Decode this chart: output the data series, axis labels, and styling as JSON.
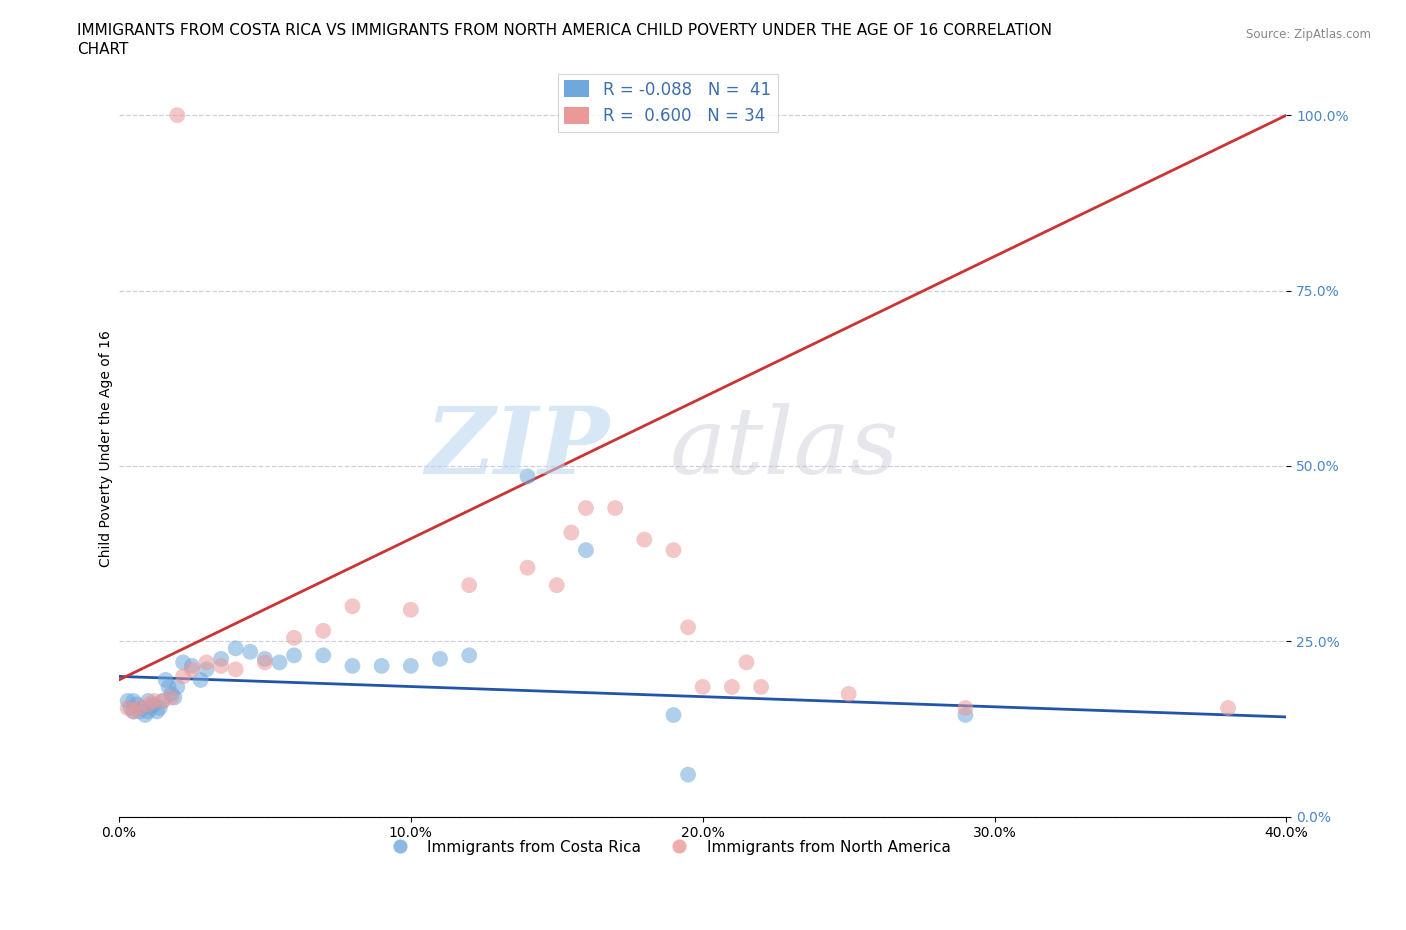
{
  "title_line1": "IMMIGRANTS FROM COSTA RICA VS IMMIGRANTS FROM NORTH AMERICA CHILD POVERTY UNDER THE AGE OF 16 CORRELATION",
  "title_line2": "CHART",
  "source": "Source: ZipAtlas.com",
  "ylabel": "Child Poverty Under the Age of 16",
  "xmin": 0.0,
  "xmax": 0.4,
  "ymin": 0.0,
  "ymax": 1.05,
  "yticks": [
    0.0,
    0.25,
    0.5,
    0.75,
    1.0
  ],
  "ytick_labels": [
    "0.0%",
    "25.0%",
    "50.0%",
    "75.0%",
    "100.0%"
  ],
  "xticks": [
    0.0,
    0.1,
    0.2,
    0.3,
    0.4
  ],
  "xtick_labels": [
    "0.0%",
    "10.0%",
    "20.0%",
    "30.0%",
    "40.0%"
  ],
  "blue_color": "#6fa8dc",
  "pink_color": "#ea9999",
  "blue_line_color": "#2255aa",
  "pink_line_color": "#cc3333",
  "legend_blue_R": "-0.088",
  "legend_blue_N": "41",
  "legend_pink_R": "0.600",
  "legend_pink_N": "34",
  "legend_label_blue": "Immigrants from Costa Rica",
  "legend_label_pink": "Immigrants from North America",
  "blue_x": [
    0.003,
    0.004,
    0.005,
    0.005,
    0.006,
    0.007,
    0.008,
    0.009,
    0.01,
    0.01,
    0.011,
    0.012,
    0.013,
    0.014,
    0.015,
    0.016,
    0.017,
    0.018,
    0.019,
    0.02,
    0.022,
    0.025,
    0.028,
    0.03,
    0.035,
    0.04,
    0.045,
    0.05,
    0.055,
    0.06,
    0.07,
    0.08,
    0.09,
    0.1,
    0.11,
    0.12,
    0.14,
    0.16,
    0.19,
    0.29,
    0.195
  ],
  "blue_y": [
    0.165,
    0.155,
    0.15,
    0.165,
    0.16,
    0.15,
    0.155,
    0.145,
    0.15,
    0.165,
    0.155,
    0.16,
    0.15,
    0.155,
    0.165,
    0.195,
    0.185,
    0.175,
    0.17,
    0.185,
    0.22,
    0.215,
    0.195,
    0.21,
    0.225,
    0.24,
    0.235,
    0.225,
    0.22,
    0.23,
    0.23,
    0.215,
    0.215,
    0.215,
    0.225,
    0.23,
    0.485,
    0.38,
    0.145,
    0.145,
    0.06
  ],
  "pink_x": [
    0.003,
    0.005,
    0.007,
    0.01,
    0.012,
    0.015,
    0.018,
    0.022,
    0.025,
    0.03,
    0.035,
    0.04,
    0.05,
    0.06,
    0.07,
    0.08,
    0.1,
    0.12,
    0.14,
    0.15,
    0.155,
    0.16,
    0.17,
    0.18,
    0.19,
    0.195,
    0.2,
    0.21,
    0.215,
    0.22,
    0.25,
    0.29,
    0.38,
    0.02
  ],
  "pink_y": [
    0.155,
    0.15,
    0.155,
    0.16,
    0.165,
    0.165,
    0.17,
    0.2,
    0.21,
    0.22,
    0.215,
    0.21,
    0.22,
    0.255,
    0.265,
    0.3,
    0.295,
    0.33,
    0.355,
    0.33,
    0.405,
    0.44,
    0.44,
    0.395,
    0.38,
    0.27,
    0.185,
    0.185,
    0.22,
    0.185,
    0.175,
    0.155,
    0.155,
    1.0
  ],
  "pink_top_x": [
    0.02
  ],
  "pink_top_y": [
    1.0
  ],
  "blue_line_x0": 0.0,
  "blue_line_x1": 0.4,
  "blue_line_y0": 0.2,
  "blue_line_y1": 0.155,
  "pink_line_x0": 0.0,
  "pink_line_x1": 0.4,
  "pink_line_y0": 0.195,
  "pink_line_y1": 1.0,
  "title_fontsize": 11,
  "axis_label_fontsize": 10,
  "tick_fontsize": 10
}
